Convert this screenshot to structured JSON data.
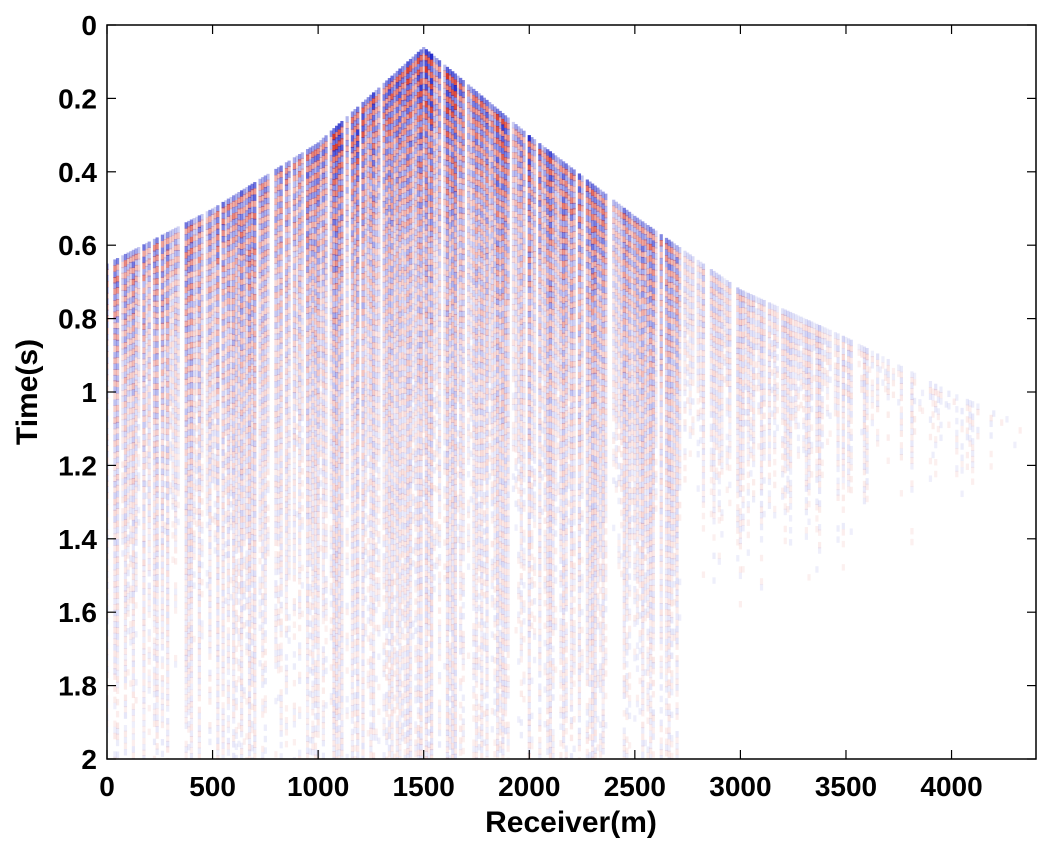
{
  "chart_data": {
    "type": "heatmap",
    "title": "",
    "xlabel": "Receiver(m)",
    "ylabel": "Time(s)",
    "xlim": [
      0,
      4400
    ],
    "ylim": [
      0,
      2
    ],
    "y_reversed": true,
    "x_ticks": [
      0,
      500,
      1000,
      1500,
      2000,
      2500,
      3000,
      3500,
      4000
    ],
    "x_tick_labels": [
      "0",
      "500",
      "1000",
      "1500",
      "2000",
      "2500",
      "3000",
      "3500",
      "4000"
    ],
    "y_ticks": [
      0,
      0.2,
      0.4,
      0.6,
      0.8,
      1,
      1.2,
      1.4,
      1.6,
      1.8,
      2
    ],
    "y_tick_labels": [
      "0",
      "0.2",
      "0.4",
      "0.6",
      "0.8",
      "1",
      "1.2",
      "1.4",
      "1.6",
      "1.8",
      "2"
    ],
    "colormap": {
      "positive": "#d42a1a",
      "negative": "#1a22c8",
      "zero": "#ffffff"
    },
    "grid": false,
    "description_points": {
      "apex_receiver": 1500,
      "apex_time": 0.06,
      "first_arrival": [
        {
          "x": 0,
          "t": 0.65
        },
        {
          "x": 500,
          "t": 0.5
        },
        {
          "x": 1000,
          "t": 0.32
        },
        {
          "x": 1500,
          "t": 0.06
        },
        {
          "x": 2000,
          "t": 0.3
        },
        {
          "x": 2500,
          "t": 0.52
        },
        {
          "x": 3000,
          "t": 0.72
        },
        {
          "x": 3500,
          "t": 0.85
        },
        {
          "x": 4000,
          "t": 1.0
        },
        {
          "x": 4400,
          "t": 1.1
        }
      ]
    }
  }
}
